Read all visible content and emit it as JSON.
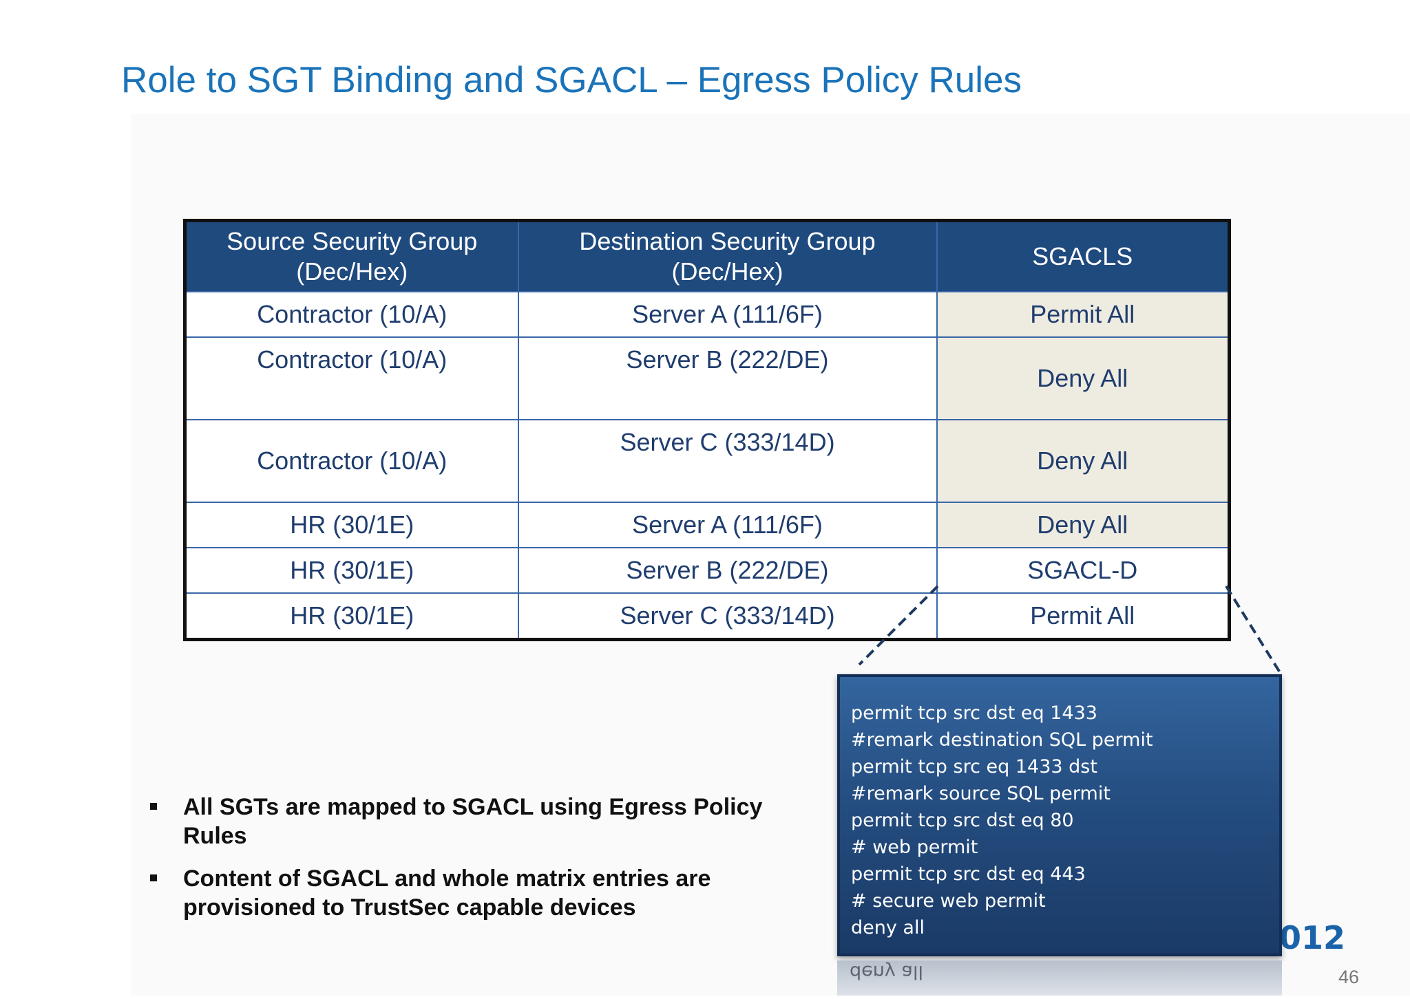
{
  "title": "Role to SGT Binding and SGACL – Egress Policy Rules",
  "table": {
    "headers": [
      [
        "Source Security Group",
        "(Dec/Hex)"
      ],
      [
        "Destination Security Group",
        "(Dec/Hex)"
      ],
      [
        "SGACLS"
      ]
    ],
    "rows": [
      {
        "source": "Contractor (10/A)",
        "destination": "Server A (111/6F)",
        "sgacl": "Permit All"
      },
      {
        "source": "Contractor (10/A)",
        "destination": "Server B (222/DE)",
        "sgacl": "Deny All"
      },
      {
        "source": "Contractor (10/A)",
        "destination": "Server C (333/14D)",
        "sgacl": "Deny All"
      },
      {
        "source": "HR (30/1E)",
        "destination": "Server A (111/6F)",
        "sgacl": "Deny All"
      },
      {
        "source": "HR (30/1E)",
        "destination": "Server B (222/DE)",
        "sgacl": "SGACL-D"
      },
      {
        "source": "HR (30/1E)",
        "destination": "Server C (333/14D)",
        "sgacl": "Permit All"
      }
    ]
  },
  "acl_detail": {
    "lines": [
      "permit tcp  src  dst  eq 1433",
      "#remark destination SQL permit",
      "permit tcp src  eq 1433  dst",
      "#remark source SQL permit",
      "permit tcp  src  dst eq 80",
      "# web permit",
      "permit tcp  src  dst eq 443",
      "# secure web permit",
      "deny all"
    ],
    "reflection_text": "deny all"
  },
  "bullets": [
    "All SGTs are mapped to SGACL using Egress Policy Rules",
    "Content of SGACL and whole matrix entries are provisioned to TrustSec capable devices"
  ],
  "year_fragment": "012",
  "page_number": "46",
  "colors": {
    "title": "#1a73b9",
    "header_bg": "#1f4a7e",
    "cell_text": "#1f3d6e",
    "sgacl_highlight": "#eeebe0",
    "acl_box": "#244d80"
  }
}
